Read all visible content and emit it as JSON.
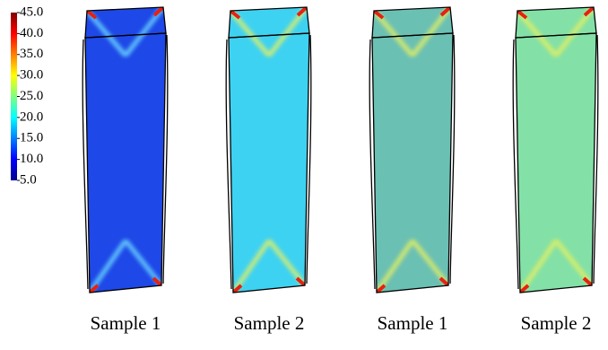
{
  "colorbar": {
    "range": [
      5,
      45
    ],
    "ticks": [
      {
        "value": 45,
        "label": "45.0"
      },
      {
        "value": 40,
        "label": "40.0"
      },
      {
        "value": 35,
        "label": "35.0"
      },
      {
        "value": 30,
        "label": "30.0"
      },
      {
        "value": 25,
        "label": "25.0"
      },
      {
        "value": 20,
        "label": "20.0"
      },
      {
        "value": 15,
        "label": "15.0"
      },
      {
        "value": 10,
        "label": "10.0"
      },
      {
        "value": 5,
        "label": "5.0"
      }
    ]
  },
  "panels": [
    {
      "label": "Sample 1"
    },
    {
      "label": "Sample 2"
    },
    {
      "label": "Sample 1"
    },
    {
      "label": "Sample 2"
    }
  ]
}
